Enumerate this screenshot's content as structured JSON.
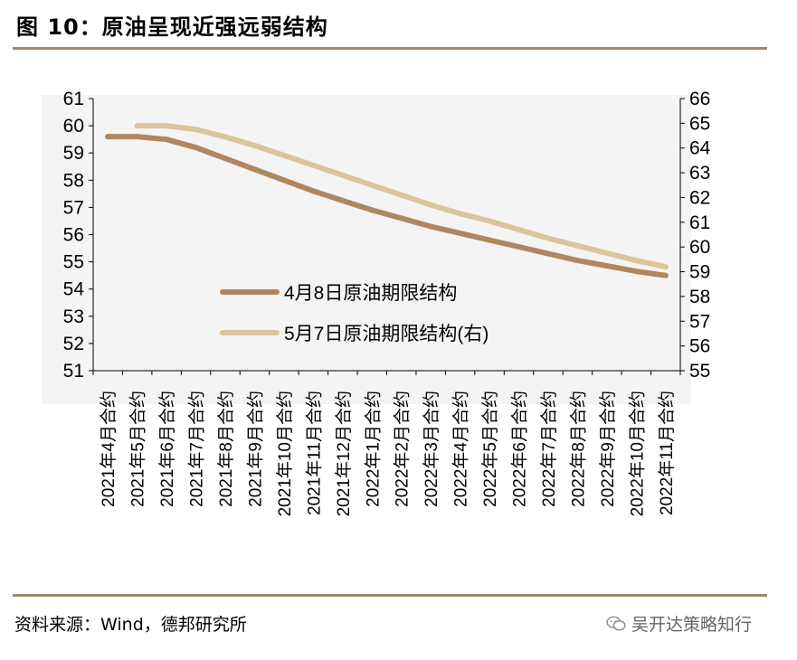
{
  "figure": {
    "title": "图 10：原油呈现近强远弱结构"
  },
  "source": {
    "text": "资料来源：Wind，德邦研究所"
  },
  "watermark": {
    "text": "吴开达策略知行",
    "icon": "wechat-icon"
  },
  "chart_data": {
    "type": "line",
    "title": "",
    "categories": [
      "2021年4月合约",
      "2021年5月合约",
      "2021年6月合约",
      "2021年7月合约",
      "2021年8月合约",
      "2021年9月合约",
      "2021年10月合约",
      "2021年11月合约",
      "2021年12月合约",
      "2022年1月合约",
      "2022年2月合约",
      "2022年3月合约",
      "2022年4月合约",
      "2022年5月合约",
      "2022年6月合约",
      "2022年7月合约",
      "2022年8月合约",
      "2022年9月合约",
      "2022年10月合约",
      "2022年11月合约"
    ],
    "left_axis": {
      "ylim": [
        51,
        61
      ],
      "ticks": [
        51,
        52,
        53,
        54,
        55,
        56,
        57,
        58,
        59,
        60,
        61
      ]
    },
    "right_axis": {
      "ylim": [
        55,
        66
      ],
      "ticks": [
        55,
        56,
        57,
        58,
        59,
        60,
        61,
        62,
        63,
        64,
        65,
        66
      ]
    },
    "series": [
      {
        "name": "4月8日原油期限结构",
        "axis": "left",
        "color": "#b0865e",
        "values": [
          59.6,
          59.6,
          59.5,
          59.2,
          58.8,
          58.4,
          58.0,
          57.6,
          57.25,
          56.9,
          56.6,
          56.3,
          56.05,
          55.8,
          55.55,
          55.3,
          55.05,
          54.85,
          54.65,
          54.5
        ]
      },
      {
        "name": "5月7日原油期限结构(右)",
        "axis": "right",
        "color": "#d9c59b",
        "values": [
          null,
          64.9,
          64.9,
          64.75,
          64.45,
          64.1,
          63.7,
          63.3,
          62.9,
          62.5,
          62.1,
          61.7,
          61.35,
          61.05,
          60.7,
          60.35,
          60.05,
          59.75,
          59.45,
          59.2
        ]
      }
    ],
    "legend": {
      "position": "center"
    }
  }
}
